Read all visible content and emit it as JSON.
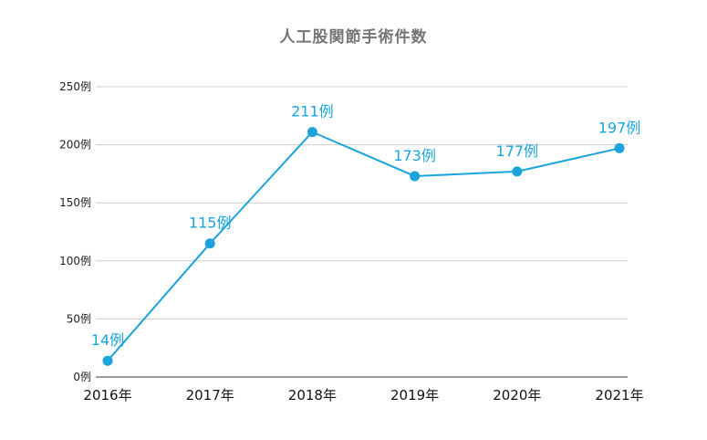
{
  "chart_data": {
    "type": "line",
    "title": "人工股関節手術件数",
    "categories": [
      "2016年",
      "2017年",
      "2018年",
      "2019年",
      "2020年",
      "2021年"
    ],
    "series": [
      {
        "values": [
          14,
          115,
          211,
          173,
          177,
          197
        ],
        "data_labels": [
          "14例",
          "115例",
          "211例",
          "173例",
          "177例",
          "197例"
        ],
        "color": "#1aa3dc"
      }
    ],
    "ylim": [
      0,
      250
    ],
    "yticks": [
      0,
      50,
      100,
      150,
      200,
      250
    ],
    "ytick_labels": [
      "0例",
      "50例",
      "100例",
      "150例",
      "200例",
      "250例"
    ],
    "grid": true,
    "xlabel": "",
    "ylabel": ""
  }
}
